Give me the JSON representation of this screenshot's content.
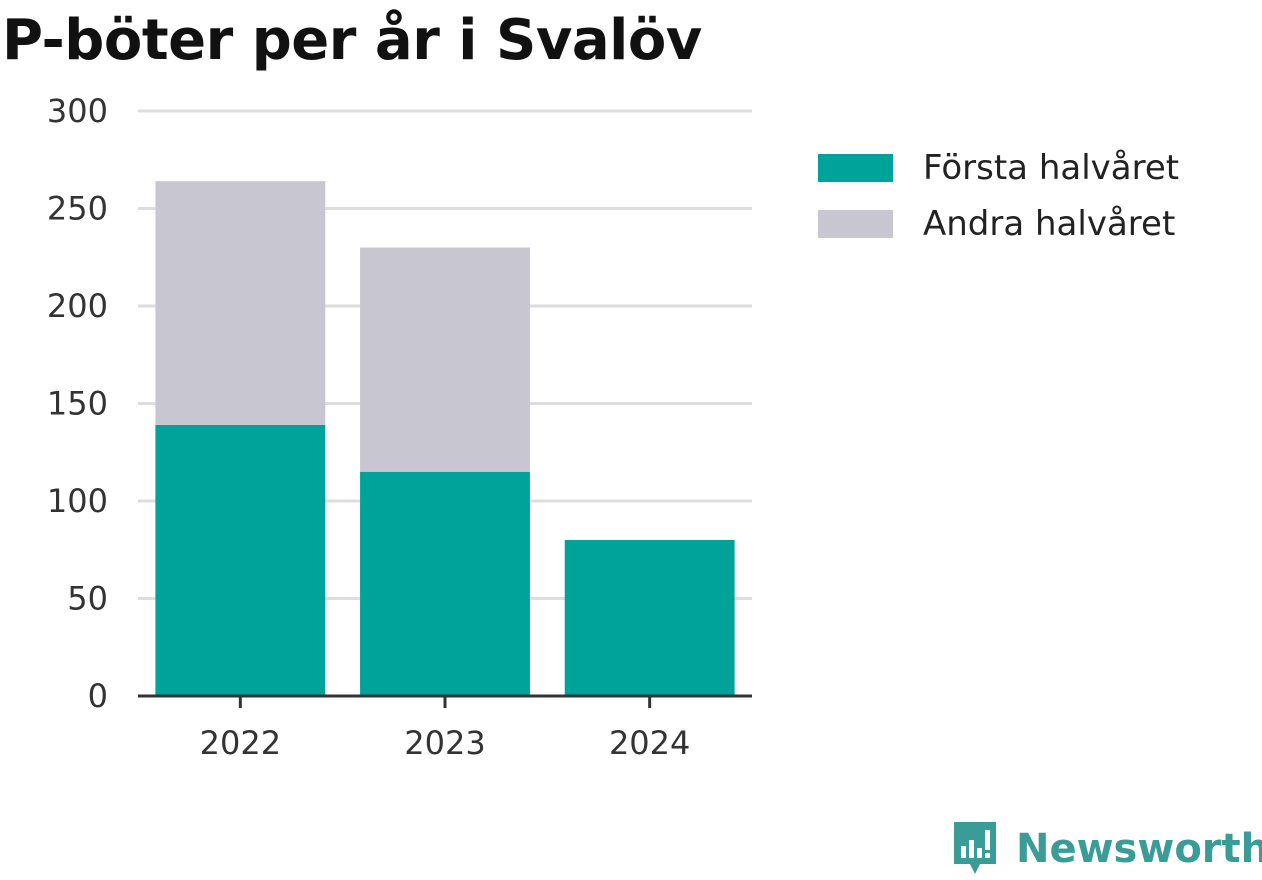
{
  "title": "P-böter per år i Svalöv",
  "brand": {
    "name": "Newsworthy"
  },
  "legend": [
    {
      "label": "Första halvåret",
      "color": "#00a39a"
    },
    {
      "label": "Andra halvåret",
      "color": "#c8c7d1"
    }
  ],
  "colors": {
    "grid": "#dddddd",
    "axis": "#333333",
    "brand": "#3a9c96"
  },
  "chart_data": {
    "type": "bar",
    "stacked": true,
    "categories": [
      "2022",
      "2023",
      "2024"
    ],
    "series": [
      {
        "name": "Första halvåret",
        "values": [
          139,
          115,
          80
        ],
        "color": "#00a39a"
      },
      {
        "name": "Andra halvåret",
        "values": [
          125,
          115,
          null
        ],
        "color": "#c8c7d1"
      }
    ],
    "ylim": [
      0,
      300
    ],
    "yticks": [
      0,
      50,
      100,
      150,
      200,
      250,
      300
    ],
    "grid": true,
    "legend_position": "right",
    "xlabel": "",
    "ylabel": ""
  }
}
